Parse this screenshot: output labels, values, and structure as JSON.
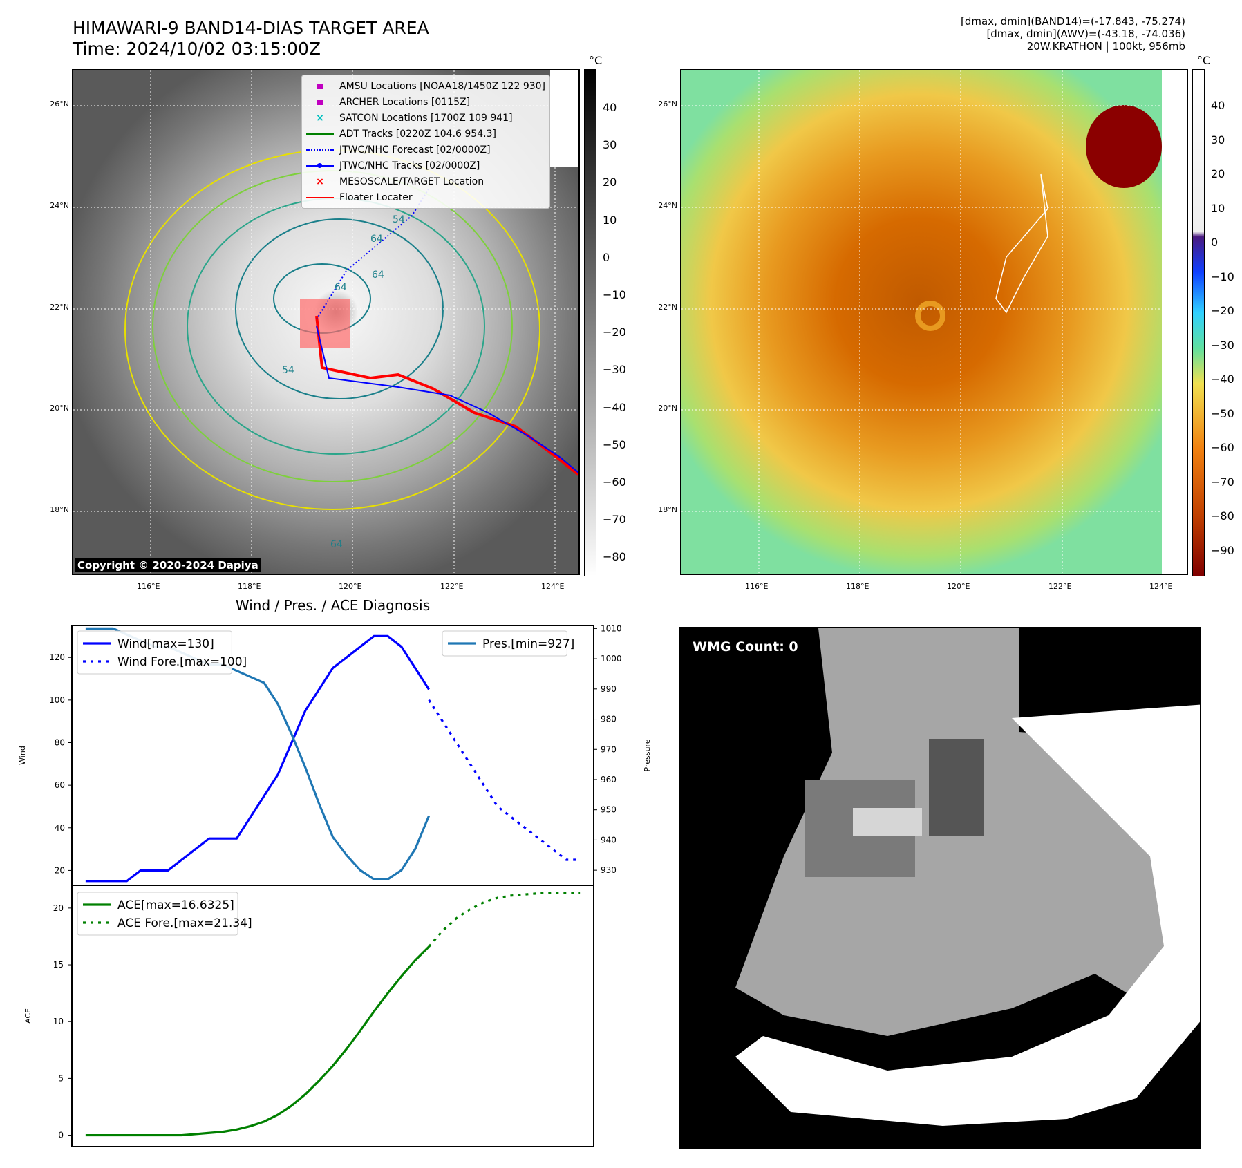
{
  "header": {
    "title_line1": "HIMAWARI-9 BAND14-DIAS TARGET AREA",
    "title_line2": "Time: 2024/10/02 03:15:00Z",
    "info_line1": "[dmax, dmin](BAND14)=(-17.843, -75.274)",
    "info_line2": "[dmax, dmin](AWV)=(-43.18, -74.036)",
    "info_line3": "20W.KRATHON | 100kt, 956mb"
  },
  "map_axes": {
    "lat_labels": [
      "26°N",
      "24°N",
      "22°N",
      "20°N",
      "18°N"
    ],
    "lon_labels": [
      "116°E",
      "118°E",
      "120°E",
      "122°E",
      "124°E"
    ]
  },
  "ir_panel": {
    "copyright": "Copyright © 2020-2024 Dapiya",
    "contour_labels": [
      "64",
      "54",
      "64",
      "64",
      "54",
      "64"
    ],
    "legend": [
      {
        "label": "AMSU Locations [NOAA18/1450Z 122 930]",
        "symbol": "square",
        "color": "#c000c0"
      },
      {
        "label": "ARCHER Locations [0115Z]",
        "symbol": "square",
        "color": "#c000c0"
      },
      {
        "label": "SATCON Locations [1700Z 109 941]",
        "symbol": "x",
        "color": "#00c0c0"
      },
      {
        "label": "ADT Tracks [0220Z 104.6 954.3]",
        "symbol": "line",
        "color": "#008000"
      },
      {
        "label": "JTWC/NHC Forecast [02/0000Z]",
        "symbol": "dotted",
        "color": "#0000ff"
      },
      {
        "label": "JTWC/NHC Tracks [02/0000Z]",
        "symbol": "line-dot",
        "color": "#0000ff"
      },
      {
        "label": "MESOSCALE/TARGET Location",
        "symbol": "x",
        "color": "#ff0000"
      },
      {
        "label": "Floater Locater",
        "symbol": "line",
        "color": "#ff0000"
      }
    ],
    "colorbar": {
      "unit": "°C",
      "ticks": [
        "40",
        "30",
        "20",
        "10",
        "0",
        "−10",
        "−20",
        "−30",
        "−40",
        "−50",
        "−60",
        "−70",
        "−80"
      ]
    }
  },
  "color_panel": {
    "colorbar": {
      "unit": "°C",
      "ticks": [
        "40",
        "30",
        "20",
        "10",
        "0",
        "−10",
        "−20",
        "−30",
        "−40",
        "−50",
        "−60",
        "−70",
        "−80",
        "−90"
      ]
    }
  },
  "wmg_panel": {
    "label": "WMG Count: 0"
  },
  "colors": {
    "wind": "#0000ff",
    "pressure": "#1f77b4",
    "ace": "#008000",
    "track": "#ff0000"
  },
  "chart_data": [
    {
      "type": "line",
      "title": "Wind / Pres. / ACE Diagnosis",
      "ylabel": "Wind",
      "y2label": "Pressure",
      "ylim": [
        13,
        135
      ],
      "y2lim": [
        925,
        1011
      ],
      "yticks": [
        20,
        40,
        60,
        80,
        100,
        120
      ],
      "y2ticks": [
        930,
        940,
        950,
        960,
        970,
        980,
        990,
        1000,
        1010
      ],
      "series": [
        {
          "name": "Wind[max=130]",
          "axis": "left",
          "style": "solid",
          "x": [
            0,
            1,
            2,
            3,
            4,
            5,
            6,
            7,
            8,
            9,
            10,
            11,
            12,
            13,
            14,
            15,
            16,
            17,
            18,
            19,
            20,
            21,
            22,
            23,
            24,
            25
          ],
          "values": [
            15,
            15,
            15,
            15,
            20,
            20,
            20,
            25,
            30,
            35,
            35,
            35,
            45,
            55,
            65,
            80,
            95,
            105,
            115,
            120,
            125,
            130,
            130,
            125,
            115,
            105
          ]
        },
        {
          "name": "Wind Fore.[max=100]",
          "axis": "left",
          "style": "dotted",
          "x": [
            25,
            26,
            27,
            28,
            29,
            30,
            31,
            32,
            33,
            34,
            35,
            36
          ],
          "values": [
            100,
            90,
            80,
            70,
            60,
            50,
            45,
            40,
            35,
            30,
            25,
            25
          ]
        },
        {
          "name": "Pres.[min=927]",
          "axis": "right",
          "style": "solid",
          "x": [
            0,
            1,
            2,
            3,
            4,
            5,
            6,
            7,
            8,
            9,
            10,
            11,
            12,
            13,
            14,
            15,
            16,
            17,
            18,
            19,
            20,
            21,
            22,
            23,
            24,
            25
          ],
          "values": [
            1010,
            1010,
            1010,
            1008,
            1006,
            1004,
            1004,
            1002,
            1000,
            998,
            998,
            996,
            994,
            992,
            985,
            975,
            964,
            952,
            941,
            935,
            930,
            927,
            927,
            930,
            937,
            948
          ]
        },
        {
          "name": "ACE[max=16.6325]",
          "axis": "ace",
          "style": "solid",
          "x": [
            0,
            1,
            2,
            3,
            4,
            5,
            6,
            7,
            8,
            9,
            10,
            11,
            12,
            13,
            14,
            15,
            16,
            17,
            18,
            19,
            20,
            21,
            22,
            23,
            24,
            25
          ],
          "values": [
            0,
            0,
            0,
            0,
            0,
            0,
            0,
            0,
            0.1,
            0.2,
            0.3,
            0.5,
            0.8,
            1.2,
            1.8,
            2.6,
            3.6,
            4.8,
            6.1,
            7.6,
            9.2,
            10.9,
            12.5,
            14.0,
            15.4,
            16.6
          ]
        },
        {
          "name": "ACE Fore.[max=21.34]",
          "axis": "ace",
          "style": "dotted",
          "x": [
            25,
            26,
            27,
            28,
            29,
            30,
            31,
            32,
            33,
            34,
            35,
            36
          ],
          "values": [
            16.6,
            18.0,
            19.1,
            19.9,
            20.5,
            20.9,
            21.1,
            21.2,
            21.3,
            21.34,
            21.34,
            21.34
          ]
        }
      ],
      "ace_ylabel": "ACE",
      "ace_ylim": [
        -1,
        22
      ],
      "ace_yticks": [
        0,
        5,
        10,
        15,
        20
      ],
      "xlim": [
        -1,
        37
      ]
    }
  ]
}
